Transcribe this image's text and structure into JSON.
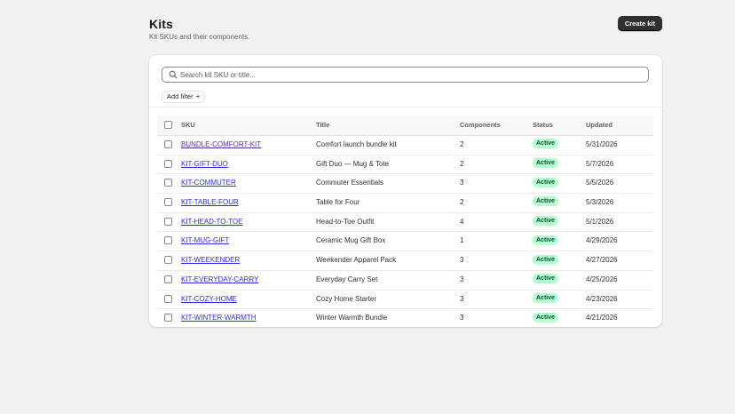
{
  "header": {
    "title": "Kits",
    "subtitle": "Kit SKUs and their components.",
    "create_label": "Create kit"
  },
  "search": {
    "placeholder": "Search kit SKU or title...",
    "value": ""
  },
  "filter": {
    "label": "Add filter",
    "plus": "+"
  },
  "table": {
    "columns": {
      "sku": "SKU",
      "title": "Title",
      "components": "Components",
      "status": "Status",
      "updated": "Updated"
    },
    "rows": [
      {
        "sku": "BUNDLE-COMFORT-KIT",
        "title": "Comfort launch bundle kit",
        "components": "2",
        "status": "Active",
        "updated": "5/31/2026"
      },
      {
        "sku": "KIT-GIFT-DUO",
        "title": "Gift Duo — Mug & Tote",
        "components": "2",
        "status": "Active",
        "updated": "5/7/2026"
      },
      {
        "sku": "KIT-COMMUTER",
        "title": "Commuter Essentials",
        "components": "3",
        "status": "Active",
        "updated": "5/5/2026"
      },
      {
        "sku": "KIT-TABLE-FOUR",
        "title": "Table for Four",
        "components": "2",
        "status": "Active",
        "updated": "5/3/2026"
      },
      {
        "sku": "KIT-HEAD-TO-TOE",
        "title": "Head-to-Toe Outfit",
        "components": "4",
        "status": "Active",
        "updated": "5/1/2026"
      },
      {
        "sku": "KIT-MUG-GIFT",
        "title": "Ceramic Mug Gift Box",
        "components": "1",
        "status": "Active",
        "updated": "4/29/2026"
      },
      {
        "sku": "KIT-WEEKENDER",
        "title": "Weekender Apparel Pack",
        "components": "3",
        "status": "Active",
        "updated": "4/27/2026"
      },
      {
        "sku": "KIT-EVERYDAY-CARRY",
        "title": "Everyday Carry Set",
        "components": "3",
        "status": "Active",
        "updated": "4/25/2026"
      },
      {
        "sku": "KIT-COZY-HOME",
        "title": "Cozy Home Starter",
        "components": "3",
        "status": "Active",
        "updated": "4/23/2026"
      },
      {
        "sku": "KIT-WINTER-WARMTH",
        "title": "Winter Warmth Bundle",
        "components": "3",
        "status": "Active",
        "updated": "4/21/2026"
      }
    ]
  },
  "icons": {
    "search": "search-icon"
  },
  "colors": {
    "link": "#2c2ce0",
    "link_visited": "#5b2ca8",
    "badge_bg": "#b4fed2",
    "badge_text": "#0c5132",
    "primary_button": "#303030"
  }
}
